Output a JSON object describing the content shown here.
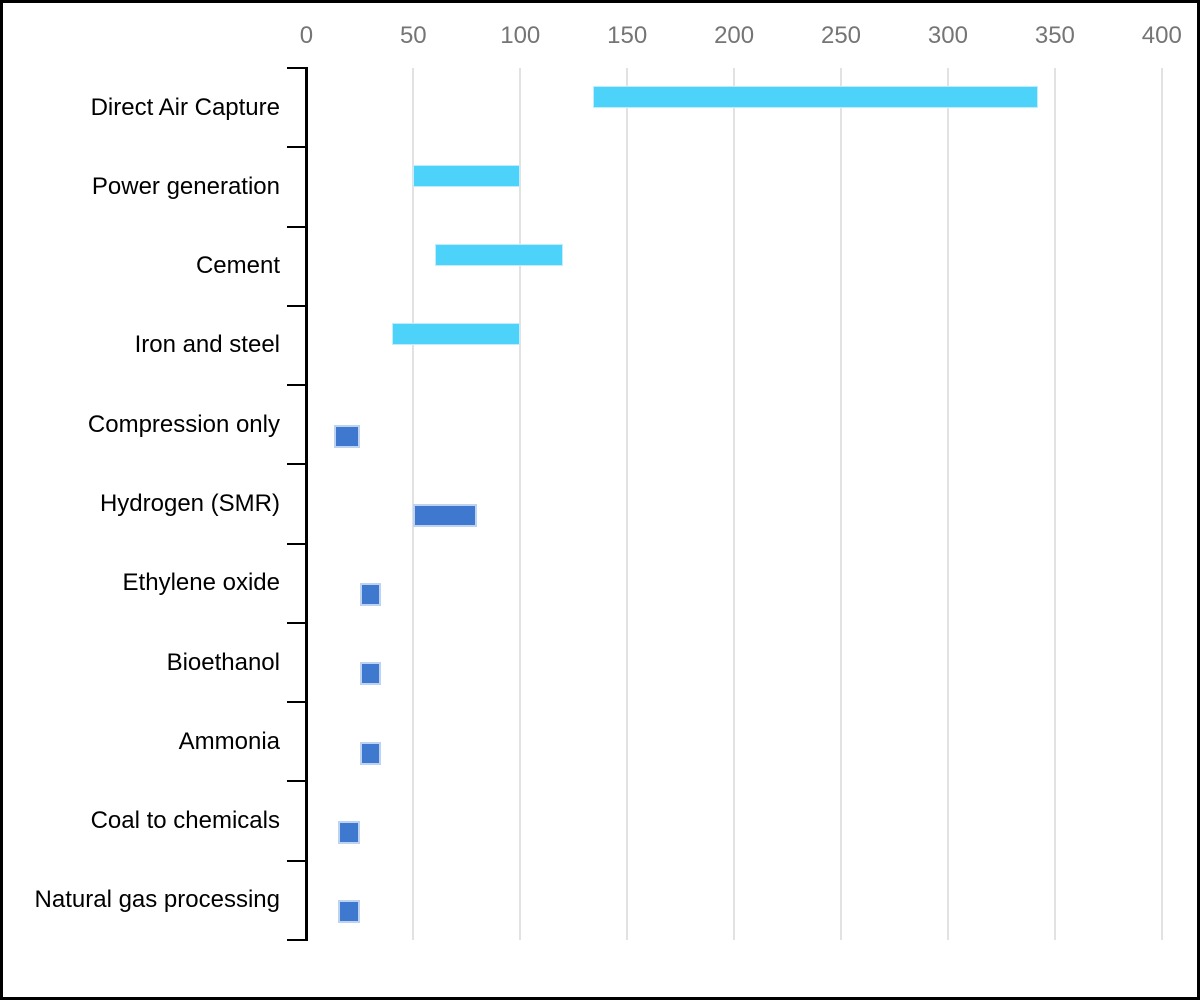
{
  "chart_data": {
    "type": "bar",
    "subtype": "horizontal-floating-range",
    "orientation": "horizontal",
    "grid": true,
    "legend": false,
    "x_axis": {
      "tick_labels": [
        "0",
        "50",
        "100",
        "150",
        "200",
        "250",
        "300",
        "350",
        "400"
      ],
      "tick_values": [
        0,
        50,
        100,
        150,
        200,
        250,
        300,
        350,
        400
      ],
      "range": [
        0,
        411
      ]
    },
    "categories": [
      "Direct Air Capture",
      "Power generation",
      "Cement",
      "Iron and steel",
      "Compression only",
      "Hydrogen (SMR)",
      "Ethylene oxide",
      "Bioethanol",
      "Ammonia",
      "Coal to chemicals",
      "Natural gas processing"
    ],
    "values": [
      {
        "label": "Direct Air Capture",
        "low": 134,
        "high": 342,
        "palette": "light"
      },
      {
        "label": "Power generation",
        "low": 50,
        "high": 100,
        "palette": "light"
      },
      {
        "label": "Cement",
        "low": 60,
        "high": 120,
        "palette": "light"
      },
      {
        "label": "Iron and steel",
        "low": 40,
        "high": 100,
        "palette": "light"
      },
      {
        "label": "Compression only",
        "low": 13,
        "high": 25,
        "palette": "dark"
      },
      {
        "label": "Hydrogen (SMR)",
        "low": 50,
        "high": 80,
        "palette": "dark"
      },
      {
        "label": "Ethylene oxide",
        "low": 25,
        "high": 35,
        "palette": "dark"
      },
      {
        "label": "Bioethanol",
        "low": 25,
        "high": 35,
        "palette": "dark"
      },
      {
        "label": "Ammonia",
        "low": 25,
        "high": 35,
        "palette": "dark"
      },
      {
        "label": "Coal to chemicals",
        "low": 15,
        "high": 25,
        "palette": "dark"
      },
      {
        "label": "Natural gas processing",
        "low": 15,
        "high": 25,
        "palette": "dark"
      }
    ],
    "colors": {
      "light": "#4DD2FA",
      "light_border": "#BFEDFD",
      "dark": "#3E79CF",
      "dark_border": "#BDD3EF",
      "gridline": "#E2E2E2",
      "axis": "#000000",
      "x_tick_label": "#757575",
      "category_label": "#000000",
      "background": "#FFFFFF",
      "figure_border": "#000000"
    }
  }
}
